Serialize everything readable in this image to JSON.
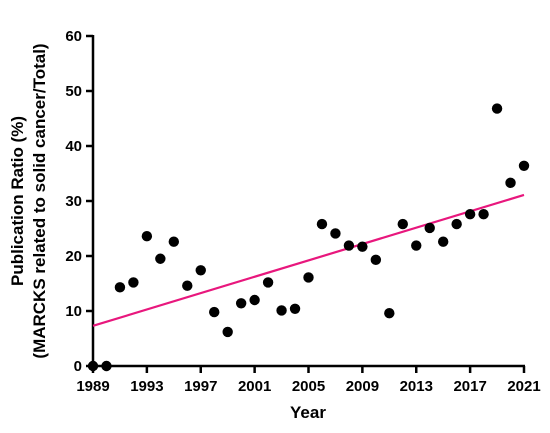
{
  "chart_data": {
    "type": "scatter",
    "xlabel": "Year",
    "ylabel_line1": "Publication Ratio (%)",
    "ylabel_line2": "(MARCKS related to solid cancer/Total)",
    "xlim": [
      1989,
      2021
    ],
    "ylim": [
      0,
      60
    ],
    "x_ticks": [
      1989,
      1993,
      1997,
      2001,
      2005,
      2009,
      2013,
      2017,
      2021
    ],
    "y_ticks": [
      0,
      10,
      20,
      30,
      40,
      50,
      60
    ],
    "grid": false,
    "points": [
      {
        "x": 1989,
        "y": 0
      },
      {
        "x": 1990,
        "y": 0
      },
      {
        "x": 1991,
        "y": 14.3
      },
      {
        "x": 1992,
        "y": 15.2
      },
      {
        "x": 1993,
        "y": 23.6
      },
      {
        "x": 1994,
        "y": 19.5
      },
      {
        "x": 1995,
        "y": 22.6
      },
      {
        "x": 1996,
        "y": 14.6
      },
      {
        "x": 1997,
        "y": 17.4
      },
      {
        "x": 1998,
        "y": 9.8
      },
      {
        "x": 1999,
        "y": 6.2
      },
      {
        "x": 2000,
        "y": 11.4
      },
      {
        "x": 2001,
        "y": 12.0
      },
      {
        "x": 2002,
        "y": 15.2
      },
      {
        "x": 2003,
        "y": 10.1
      },
      {
        "x": 2004,
        "y": 10.4
      },
      {
        "x": 2005,
        "y": 16.1
      },
      {
        "x": 2006,
        "y": 25.8
      },
      {
        "x": 2007,
        "y": 24.1
      },
      {
        "x": 2008,
        "y": 21.9
      },
      {
        "x": 2009,
        "y": 21.7
      },
      {
        "x": 2010,
        "y": 19.3
      },
      {
        "x": 2011,
        "y": 9.6
      },
      {
        "x": 2012,
        "y": 25.8
      },
      {
        "x": 2013,
        "y": 21.9
      },
      {
        "x": 2014,
        "y": 25.1
      },
      {
        "x": 2015,
        "y": 22.6
      },
      {
        "x": 2016,
        "y": 25.8
      },
      {
        "x": 2017,
        "y": 27.6
      },
      {
        "x": 2018,
        "y": 27.6
      },
      {
        "x": 2019,
        "y": 46.8
      },
      {
        "x": 2020,
        "y": 33.3
      },
      {
        "x": 2021,
        "y": 36.4
      }
    ],
    "trendline": {
      "x": [
        1989,
        2021
      ],
      "y": [
        7.3,
        31.1
      ]
    },
    "colors": {
      "points": "#000000",
      "trendline": "#e8177d",
      "axes": "#000000"
    }
  }
}
